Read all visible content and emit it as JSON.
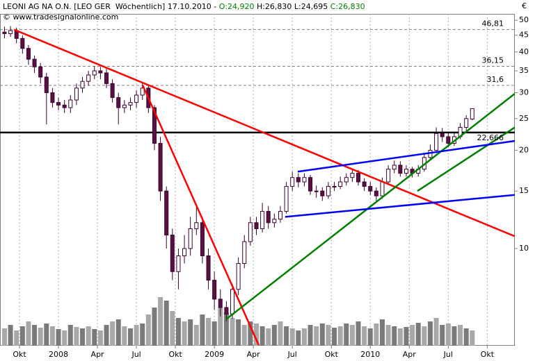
{
  "chart_data": {
    "type": "candlestick",
    "title_segments": [
      {
        "text": "LEONI AG NA O.N. [LEO GER  Wöchentlich] 17.10.2010 - ",
        "color": "#000000"
      },
      {
        "text": "O:24,920",
        "color": "#008000"
      },
      {
        "text": " H:26,830 L:24,695 ",
        "color": "#000000"
      },
      {
        "text": "C:26,830",
        "color": "#008000"
      }
    ],
    "subtitle": "© www.tradesignalonline.com",
    "y_unit": "€",
    "log": true,
    "xlim": [
      -19.5,
      152.2
    ],
    "xticks": [
      {
        "value": -13,
        "label": "Okt"
      },
      {
        "value": 0,
        "label": "2008"
      },
      {
        "value": 13,
        "label": "Apr"
      },
      {
        "value": 26,
        "label": "Jul"
      },
      {
        "value": 39,
        "label": "Okt"
      },
      {
        "value": 52,
        "label": "2009"
      },
      {
        "value": 65,
        "label": "Apr"
      },
      {
        "value": 78,
        "label": "Jul"
      },
      {
        "value": 91,
        "label": "Okt"
      },
      {
        "value": 104,
        "label": "2010"
      },
      {
        "value": 117,
        "label": "Apr"
      },
      {
        "value": 130,
        "label": "Jul"
      },
      {
        "value": 143,
        "label": "Okt"
      }
    ],
    "ylim": [
      5.04,
      52.3
    ],
    "yticks": [
      10,
      15,
      20,
      25,
      30,
      35,
      40,
      45,
      50
    ],
    "up_color": "#ffffff",
    "down_color": "#5a1040",
    "wick_color": "#3a0030",
    "volume_color": [
      "#a8a8a8",
      "#7a7a7a"
    ],
    "volume_lim": [
      0,
      80
    ],
    "x": [
      -18,
      -16,
      -14,
      -12,
      -10,
      -8,
      -6,
      -4,
      -2,
      0,
      2,
      4,
      6,
      8,
      10,
      12,
      14,
      16,
      18,
      20,
      22,
      24,
      26,
      28,
      30,
      32,
      34,
      36,
      38,
      40,
      42,
      44,
      46,
      48,
      50,
      52,
      54,
      56,
      58,
      60,
      62,
      64,
      66,
      68,
      70,
      72,
      74,
      76,
      78,
      80,
      82,
      84,
      86,
      88,
      90,
      92,
      94,
      96,
      98,
      100,
      102,
      104,
      106,
      108,
      110,
      112,
      114,
      116,
      118,
      120,
      122,
      124,
      126,
      128,
      130,
      132,
      134,
      136,
      138
    ],
    "open": [
      46,
      45.5,
      46.5,
      44,
      41,
      38,
      36,
      33.5,
      30,
      28,
      27.5,
      27,
      28.5,
      31,
      32.5,
      34,
      35,
      34.5,
      32,
      29,
      27,
      27.5,
      28,
      29.5,
      31,
      27,
      21,
      15,
      11,
      8.5,
      9.5,
      10,
      11.5,
      12,
      9.5,
      8,
      7,
      6.6,
      6.3,
      7.5,
      9,
      10.5,
      12,
      11.5,
      13,
      12,
      12.3,
      13,
      15.5,
      16.5,
      16,
      16.5,
      15,
      15,
      14.5,
      15.5,
      15.5,
      16,
      16.5,
      17,
      16,
      15.5,
      15,
      14.5,
      16,
      17.5,
      18,
      17,
      17.5,
      17,
      17.5,
      19,
      20,
      22.5,
      22,
      21,
      22,
      23.5,
      24.92
    ],
    "high": [
      47.8,
      48,
      47.5,
      45,
      42,
      39,
      37,
      34.5,
      31,
      29,
      28.5,
      29.5,
      32,
      33.5,
      35,
      36.2,
      36,
      35.5,
      33,
      30,
      28.5,
      29,
      30.5,
      32,
      31.5,
      27.5,
      22,
      15.5,
      11.5,
      10,
      11,
      12.5,
      13.5,
      12.5,
      10,
      8.5,
      7.5,
      6.9,
      7.8,
      9.4,
      11,
      12.5,
      12.5,
      13.8,
      13.5,
      12.8,
      13.5,
      16,
      17.2,
      17,
      17,
      16.8,
      15.6,
      15.4,
      16,
      16,
      16.6,
      17,
      17.6,
      17.4,
      16.4,
      16,
      15.4,
      16.5,
      18,
      18.6,
      18.5,
      18,
      17.8,
      18,
      19.6,
      20.8,
      23.5,
      23.4,
      22.6,
      22.8,
      24.2,
      25.6,
      26.83
    ],
    "low": [
      44,
      44.5,
      42.5,
      39.5,
      36.5,
      34.5,
      32,
      24,
      27,
      26.5,
      26,
      26,
      27.5,
      30,
      31.5,
      33,
      33,
      31,
      28,
      24,
      26,
      26.5,
      27,
      28.5,
      26,
      20,
      14,
      10,
      8,
      7.5,
      9,
      9.5,
      11,
      9,
      7.5,
      6.5,
      6.2,
      6,
      6.1,
      7.2,
      8.7,
      10.2,
      11,
      11.2,
      11.5,
      11.6,
      12,
      12.8,
      15,
      15.4,
      15.5,
      14.6,
      14.3,
      14,
      14.2,
      15,
      15.2,
      15.6,
      16,
      15.6,
      15,
      14.6,
      14,
      14.2,
      15.7,
      17,
      16.6,
      16.6,
      16.5,
      16.6,
      17.2,
      18.6,
      19.6,
      21.2,
      20.4,
      20.6,
      21.6,
      23,
      24.695
    ],
    "close": [
      45.5,
      46.5,
      44,
      41,
      38,
      36,
      33.5,
      30,
      28,
      27.5,
      27,
      28.5,
      31,
      32.5,
      34,
      35,
      34.5,
      32,
      29,
      27,
      27.5,
      28,
      29.5,
      31,
      27,
      21,
      15,
      11,
      8.5,
      9.5,
      10,
      11.5,
      12,
      9.5,
      8,
      7,
      6.6,
      6.3,
      7.5,
      9,
      10.5,
      12,
      11.5,
      13,
      12,
      12.3,
      13,
      15.5,
      16.5,
      16,
      16.5,
      15,
      15,
      14.5,
      15.5,
      15.5,
      16,
      16.5,
      17,
      16,
      15.5,
      15,
      14.5,
      16,
      17.5,
      18,
      17,
      17.5,
      17,
      17.5,
      19,
      20,
      22.5,
      22,
      21,
      22,
      23.5,
      25,
      26.83
    ],
    "volume": [
      25,
      30,
      22,
      28,
      35,
      30,
      26,
      32,
      28,
      24,
      22,
      30,
      27,
      25,
      28,
      24,
      22,
      30,
      35,
      38,
      28,
      25,
      30,
      32,
      45,
      55,
      70,
      65,
      50,
      40,
      35,
      38,
      30,
      45,
      40,
      35,
      55,
      48,
      40,
      38,
      30,
      35,
      32,
      28,
      25,
      30,
      35,
      28,
      25,
      22,
      25,
      30,
      28,
      32,
      30,
      26,
      28,
      32,
      30,
      35,
      28,
      25,
      32,
      38,
      30,
      28,
      25,
      27,
      30,
      33,
      28,
      35,
      40,
      30,
      32,
      28,
      30,
      25,
      22
    ],
    "levels": [
      {
        "value": 46.81,
        "label": "46,81",
        "color": "#808080",
        "dashed": true
      },
      {
        "value": 36.15,
        "label": "36,15",
        "color": "#808080",
        "dashed": true
      },
      {
        "value": 31.6,
        "label": "31,6",
        "color": "#808080",
        "dashed": true
      },
      {
        "value": 22.666,
        "label": "22,666",
        "color": "#000000",
        "dashed": false
      }
    ],
    "trendlines": [
      {
        "color": "#ff0000",
        "x": [
          -14.8,
          152.2
        ],
        "y": [
          46.8,
          10.9
        ]
      },
      {
        "color": "#ff0000",
        "x": [
          28.1,
          66.8
        ],
        "y": [
          31.6,
          5.06
        ]
      },
      {
        "color": "#008000",
        "x": [
          55.9,
          152.2
        ],
        "y": [
          6.07,
          29.8
        ]
      },
      {
        "color": "#008000",
        "x": [
          119.7,
          152.2
        ],
        "y": [
          15.0,
          23.5
        ]
      },
      {
        "color": "#0000ff",
        "x": [
          79.8,
          152.2
        ],
        "y": [
          17.2,
          21.35
        ]
      },
      {
        "color": "#0000ff",
        "x": [
          75.6,
          152.2
        ],
        "y": [
          12.5,
          14.6
        ]
      }
    ]
  }
}
